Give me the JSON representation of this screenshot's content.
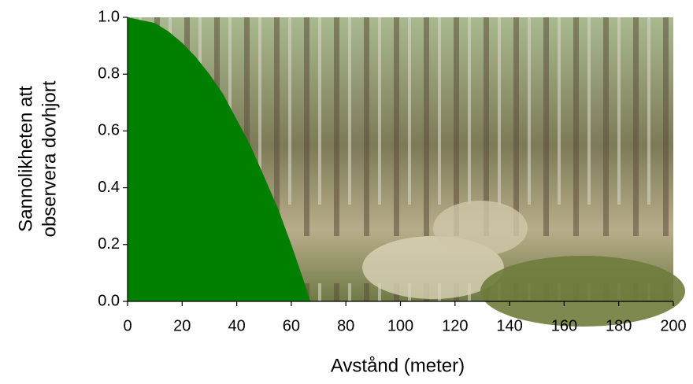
{
  "chart_data": {
    "type": "area",
    "ylabel": [
      "Sannolikheten att",
      "observera dovhjort"
    ],
    "xlabel": "Avstånd (meter)",
    "x": [
      0,
      5,
      10,
      15,
      20,
      25,
      30,
      35,
      40,
      45,
      50,
      55,
      60,
      65,
      67
    ],
    "values": [
      1.0,
      0.99,
      0.98,
      0.95,
      0.91,
      0.86,
      0.8,
      0.73,
      0.64,
      0.55,
      0.44,
      0.33,
      0.2,
      0.06,
      0.0
    ],
    "color": "#007f00",
    "xlim": [
      0,
      200
    ],
    "xticks": [
      0,
      20,
      40,
      60,
      80,
      100,
      120,
      140,
      160,
      180,
      200
    ],
    "ylim": [
      0,
      1
    ],
    "yticks": [
      {
        "value": 0,
        "label": "0.0"
      },
      {
        "value": 0.2,
        "label": "0.2"
      },
      {
        "value": 0.4,
        "label": "0.4"
      },
      {
        "value": 0.6,
        "label": "0.6"
      },
      {
        "value": 0.8,
        "label": "0.8"
      },
      {
        "value": 1,
        "label": "1.0"
      }
    ]
  }
}
